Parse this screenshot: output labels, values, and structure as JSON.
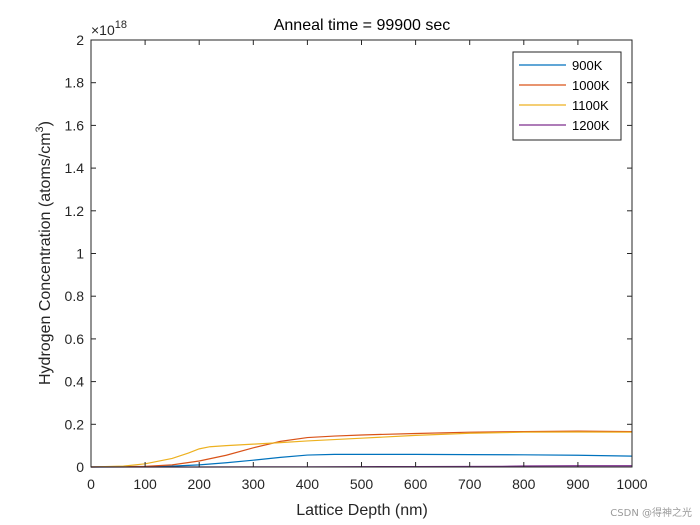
{
  "chart_data": {
    "type": "line",
    "title": "Anneal time = 99900 sec",
    "xlabel": "Lattice Depth (nm)",
    "ylabel_main": "Hydrogen Concentration (atoms/cm",
    "ylabel_sup": "3",
    "ylabel_close": ")",
    "exponent_base": "×10",
    "exponent_power": "18",
    "xlim": [
      0,
      1000
    ],
    "ylim": [
      0,
      2
    ],
    "xticks": [
      0,
      100,
      200,
      300,
      400,
      500,
      600,
      700,
      800,
      900,
      1000
    ],
    "xtick_labels": [
      "0",
      "100",
      "200",
      "300",
      "400",
      "500",
      "600",
      "700",
      "800",
      "900",
      "1000"
    ],
    "yticks": [
      0,
      0.2,
      0.4,
      0.6,
      0.8,
      1,
      1.2,
      1.4,
      1.6,
      1.8,
      2
    ],
    "ytick_labels": [
      "0",
      "0.2",
      "0.4",
      "0.6",
      "0.8",
      "1",
      "1.2",
      "1.4",
      "1.6",
      "1.8",
      "2"
    ],
    "legend_position": "top-right",
    "series": [
      {
        "name": "900K",
        "color": "#0072BD",
        "x": [
          0,
          100,
          150,
          200,
          250,
          300,
          350,
          400,
          450,
          500,
          600,
          700,
          800,
          900,
          1000
        ],
        "y": [
          0,
          0.001,
          0.004,
          0.01,
          0.02,
          0.032,
          0.045,
          0.056,
          0.059,
          0.059,
          0.059,
          0.058,
          0.057,
          0.055,
          0.051
        ]
      },
      {
        "name": "1000K",
        "color": "#D95319",
        "x": [
          0,
          100,
          150,
          200,
          250,
          300,
          350,
          400,
          450,
          500,
          600,
          700,
          800,
          900,
          1000
        ],
        "y": [
          0,
          0.003,
          0.01,
          0.028,
          0.055,
          0.09,
          0.12,
          0.138,
          0.145,
          0.15,
          0.157,
          0.163,
          0.166,
          0.168,
          0.166
        ]
      },
      {
        "name": "1100K",
        "color": "#EDB120",
        "x": [
          0,
          60,
          100,
          150,
          180,
          200,
          220,
          250,
          300,
          350,
          400,
          500,
          600,
          700,
          800,
          900,
          1000
        ],
        "y": [
          0,
          0.004,
          0.015,
          0.04,
          0.065,
          0.085,
          0.095,
          0.1,
          0.107,
          0.114,
          0.122,
          0.135,
          0.148,
          0.158,
          0.163,
          0.164,
          0.163
        ]
      },
      {
        "name": "1200K",
        "color": "#7E2F8E",
        "x": [
          0,
          200,
          400,
          600,
          760,
          800,
          900,
          1000
        ],
        "y": [
          0,
          0,
          0.001,
          0.002,
          0.003,
          0.005,
          0.006,
          0.006
        ]
      }
    ]
  },
  "watermark": "CSDN @得神之光"
}
